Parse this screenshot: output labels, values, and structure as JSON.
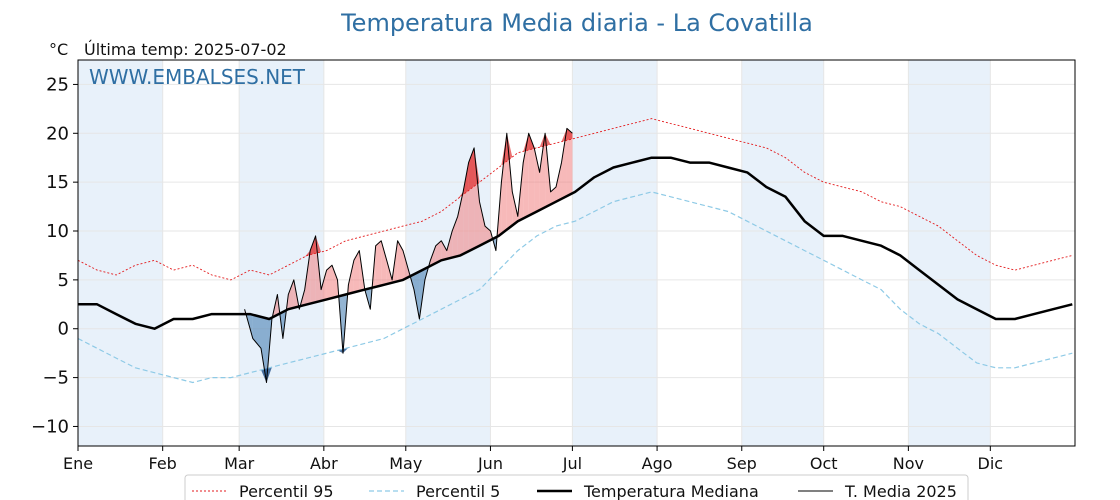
{
  "chart_data": {
    "type": "line",
    "title": "Temperatura Media diaria - La Covatilla",
    "unit_label": "°C",
    "subtitle": "Última temp: 2025-07-02",
    "watermark": "WWW.EMBALSES.NET",
    "xlabel": "",
    "ylabel": "",
    "xlim": [
      1,
      366
    ],
    "ylim": [
      -12,
      27.5
    ],
    "y_ticks": [
      -10,
      -5,
      0,
      5,
      10,
      15,
      20,
      25
    ],
    "y_tick_labels": [
      "−10",
      "−5",
      "0",
      "5",
      "10",
      "15",
      "20",
      "25"
    ],
    "months": [
      "Ene",
      "Feb",
      "Mar",
      "Abr",
      "May",
      "Jun",
      "Jul",
      "Ago",
      "Sep",
      "Oct",
      "Nov",
      "Dic"
    ],
    "month_start_days": [
      1,
      32,
      60,
      91,
      121,
      152,
      182,
      213,
      244,
      274,
      305,
      335
    ],
    "grid": true,
    "legend_position": "bottom",
    "colors": {
      "p95": "#e31a1c",
      "p5": "#8ecae6",
      "median": "#000000",
      "current": "#000000",
      "above": "#f08080",
      "below": "#3a76ad",
      "band": "#e8f1fa",
      "title": "#2f6fa3"
    },
    "series": [
      {
        "key": "p95",
        "name": "Percentil 95",
        "x": [
          1,
          8,
          15,
          22,
          29,
          36,
          43,
          50,
          57,
          64,
          71,
          78,
          85,
          92,
          99,
          106,
          113,
          120,
          127,
          134,
          141,
          148,
          155,
          162,
          169,
          176,
          183,
          190,
          197,
          204,
          211,
          218,
          225,
          232,
          239,
          246,
          253,
          260,
          267,
          274,
          281,
          288,
          295,
          302,
          309,
          316,
          323,
          330,
          337,
          344,
          351,
          358,
          365
        ],
        "values": [
          7,
          6,
          5.5,
          6.5,
          7,
          6,
          6.5,
          5.5,
          5,
          6,
          5.5,
          6.5,
          7.5,
          8,
          9,
          9.5,
          10,
          10.5,
          11,
          12,
          13.5,
          15,
          16.5,
          18,
          18.5,
          19,
          19.5,
          20,
          20.5,
          21,
          21.5,
          21,
          20.5,
          20,
          19.5,
          19,
          18.5,
          17.5,
          16,
          15,
          14.5,
          14,
          13,
          12.5,
          11.5,
          10.5,
          9,
          7.5,
          6.5,
          6,
          6.5,
          7,
          7.5
        ]
      },
      {
        "key": "p5",
        "name": "Percentil 5",
        "x": [
          1,
          8,
          15,
          22,
          29,
          36,
          43,
          50,
          57,
          64,
          71,
          78,
          85,
          92,
          99,
          106,
          113,
          120,
          127,
          134,
          141,
          148,
          155,
          162,
          169,
          176,
          183,
          190,
          197,
          204,
          211,
          218,
          225,
          232,
          239,
          246,
          253,
          260,
          267,
          274,
          281,
          288,
          295,
          302,
          309,
          316,
          323,
          330,
          337,
          344,
          351,
          358,
          365
        ],
        "values": [
          -1,
          -2,
          -3,
          -4,
          -4.5,
          -5,
          -5.5,
          -5,
          -5,
          -4.5,
          -4,
          -3.5,
          -3,
          -2.5,
          -2,
          -1.5,
          -1,
          0,
          1,
          2,
          3,
          4,
          6,
          8,
          9.5,
          10.5,
          11,
          12,
          13,
          13.5,
          14,
          13.5,
          13,
          12.5,
          12,
          11,
          10,
          9,
          8,
          7,
          6,
          5,
          4,
          2,
          0.5,
          -0.5,
          -2,
          -3.5,
          -4,
          -4,
          -3.5,
          -3,
          -2.5
        ]
      },
      {
        "key": "median",
        "name": "Temperatura Mediana",
        "x": [
          1,
          8,
          15,
          22,
          29,
          36,
          43,
          50,
          57,
          64,
          71,
          78,
          85,
          92,
          99,
          106,
          113,
          120,
          127,
          134,
          141,
          148,
          155,
          162,
          169,
          176,
          183,
          190,
          197,
          204,
          211,
          218,
          225,
          232,
          239,
          246,
          253,
          260,
          267,
          274,
          281,
          288,
          295,
          302,
          309,
          316,
          323,
          330,
          337,
          344,
          351,
          358,
          365
        ],
        "values": [
          2.5,
          2.5,
          1.5,
          0.5,
          0,
          1,
          1,
          1.5,
          1.5,
          1.5,
          1,
          2,
          2.5,
          3,
          3.5,
          4,
          4.5,
          5,
          6,
          7,
          7.5,
          8.5,
          9.5,
          11,
          12,
          13,
          14,
          15.5,
          16.5,
          17,
          17.5,
          17.5,
          17,
          17,
          16.5,
          16,
          14.5,
          13.5,
          11,
          9.5,
          9.5,
          9,
          8.5,
          7.5,
          6,
          4.5,
          3,
          2,
          1,
          1,
          1.5,
          2,
          2.5
        ]
      },
      {
        "key": "current",
        "name": "T. Media 2025",
        "x": [
          62,
          65,
          68,
          70,
          72,
          74,
          76,
          78,
          80,
          82,
          84,
          86,
          88,
          90,
          92,
          94,
          96,
          98,
          100,
          102,
          104,
          106,
          108,
          110,
          112,
          114,
          116,
          118,
          120,
          122,
          124,
          126,
          128,
          130,
          132,
          134,
          136,
          138,
          140,
          142,
          144,
          146,
          148,
          150,
          152,
          154,
          156,
          158,
          160,
          162,
          164,
          166,
          168,
          170,
          172,
          174,
          176,
          178,
          180,
          182
        ],
        "values": [
          2,
          -1,
          -2,
          -5.5,
          1,
          3.5,
          -1,
          3.5,
          5,
          2,
          4,
          8,
          9.5,
          4,
          6,
          6.5,
          5,
          -2.5,
          4.5,
          7,
          8,
          4,
          2,
          8.5,
          9,
          7,
          5,
          9,
          8,
          6,
          4,
          1,
          5,
          7,
          8.5,
          9,
          8,
          10,
          11.5,
          14,
          17,
          18.5,
          13,
          10.5,
          10,
          8,
          15,
          20,
          14,
          11.5,
          17,
          20,
          18.5,
          16,
          20,
          14,
          14.5,
          17,
          20.5,
          20
        ]
      }
    ]
  }
}
